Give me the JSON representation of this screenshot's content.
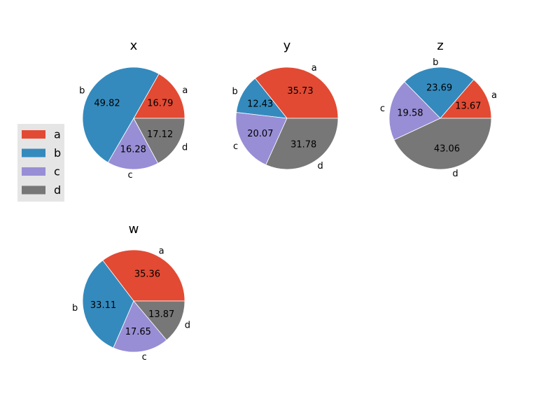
{
  "chart_data": [
    {
      "type": "pie",
      "title": "x",
      "categories": [
        "a",
        "b",
        "c",
        "d"
      ],
      "values": [
        16.79,
        49.82,
        16.28,
        17.12
      ]
    },
    {
      "type": "pie",
      "title": "y",
      "categories": [
        "a",
        "b",
        "c",
        "d"
      ],
      "values": [
        35.73,
        12.43,
        20.07,
        31.78
      ]
    },
    {
      "type": "pie",
      "title": "z",
      "categories": [
        "a",
        "b",
        "c",
        "d"
      ],
      "values": [
        13.67,
        23.69,
        19.58,
        43.06
      ]
    },
    {
      "type": "pie",
      "title": "w",
      "categories": [
        "a",
        "b",
        "c",
        "d"
      ],
      "values": [
        35.36,
        33.11,
        17.65,
        13.87
      ]
    }
  ],
  "legend": {
    "placement": "left",
    "items": [
      {
        "label": "a",
        "color": "#e24a33"
      },
      {
        "label": "b",
        "color": "#348abd"
      },
      {
        "label": "c",
        "color": "#988ed5"
      },
      {
        "label": "d",
        "color": "#777777"
      }
    ]
  },
  "colors": [
    "#e24a33",
    "#348abd",
    "#988ed5",
    "#777777"
  ]
}
